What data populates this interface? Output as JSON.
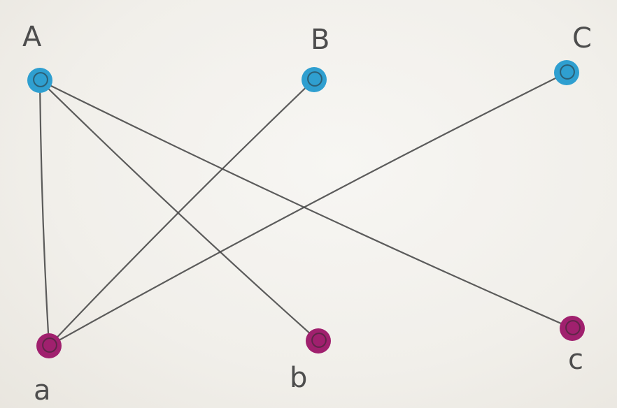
{
  "graph": {
    "top_nodes": [
      {
        "id": "A",
        "label": "A",
        "color": "#2f9fd0"
      },
      {
        "id": "B",
        "label": "B",
        "color": "#2f9fd0"
      },
      {
        "id": "C",
        "label": "C",
        "color": "#2f9fd0"
      }
    ],
    "bottom_nodes": [
      {
        "id": "a",
        "label": "a",
        "color": "#a0206e"
      },
      {
        "id": "b",
        "label": "b",
        "color": "#a0206e"
      },
      {
        "id": "c",
        "label": "c",
        "color": "#a0206e"
      }
    ],
    "edges": [
      {
        "from": "A",
        "to": "a"
      },
      {
        "from": "A",
        "to": "b"
      },
      {
        "from": "A",
        "to": "c"
      },
      {
        "from": "B",
        "to": "a"
      },
      {
        "from": "C",
        "to": "a"
      }
    ],
    "edge_color": "#4a4a4a"
  }
}
